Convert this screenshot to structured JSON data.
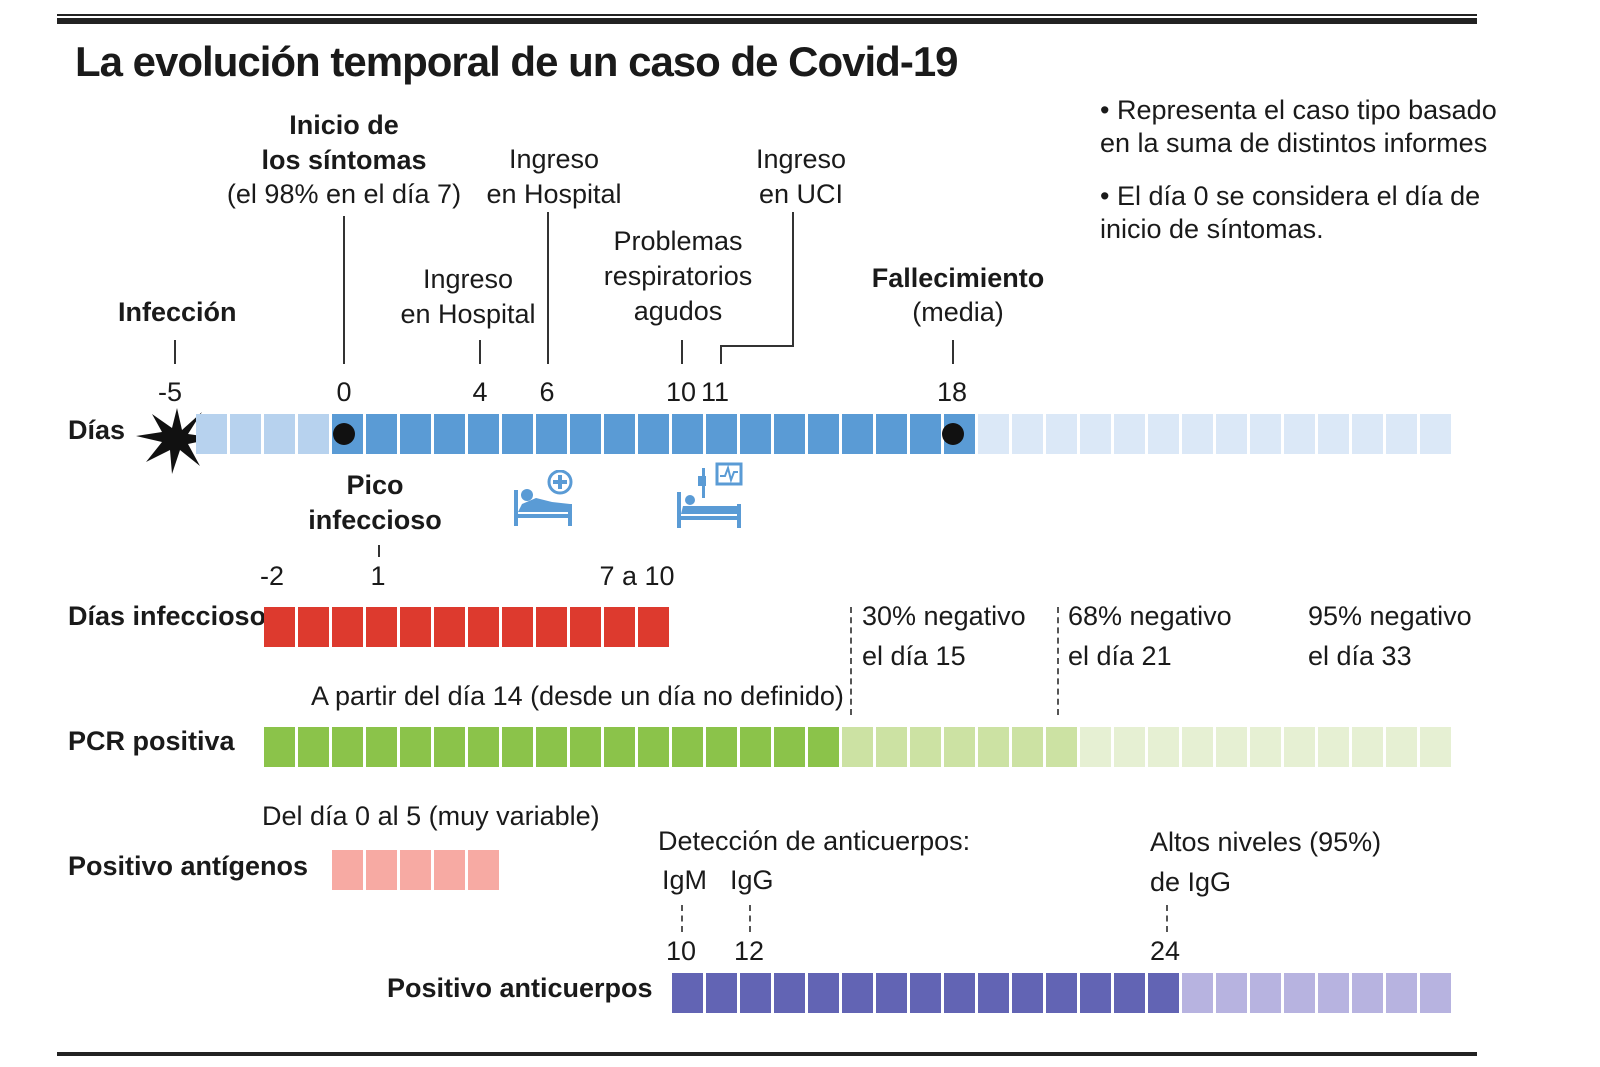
{
  "title": "La evolución temporal de un caso de Covid-19",
  "notes": [
    "• Representa el caso tipo basado\nen la suma de distintos informes",
    "• El día 0 se considera el día de\ninicio de síntomas."
  ],
  "events": {
    "infeccion": "Infección",
    "inicio_sintomas": "Inicio de\nlos síntomas",
    "inicio_sintomas_note": "(el 98% en el día 7)",
    "ingreso_hospital_4": "Ingreso\nen Hospital",
    "ingreso_hospital_6": "Ingreso\nen Hospital",
    "problemas": "Problemas\nrespiratorios\nagudos",
    "ingreso_uci": "Ingreso\nen UCI",
    "fallecimiento": "Fallecimiento",
    "fallecimiento_note": "(media)"
  },
  "dias": {
    "label": "Días",
    "ticks": [
      "-5",
      "0",
      "4",
      "6",
      "10",
      "11",
      "18"
    ]
  },
  "infeccioso": {
    "label": "Días infeccioso",
    "pico": "Pico\ninfeccioso",
    "ticks": [
      "-2",
      "1",
      "7 a 10"
    ]
  },
  "pcr": {
    "label": "PCR positiva",
    "desde": "A partir del día 14 (desde un día no definido)",
    "n30": "30% negativo\nel día 15",
    "n68": "68% negativo\nel día 21",
    "n95": "95% negativo\nel día 33"
  },
  "antigenos": {
    "label": "Positivo antígenos",
    "rango": "Del día 0 al 5 (muy variable)"
  },
  "anticuerpos": {
    "label": "Positivo anticuerpos",
    "deteccion": "Detección de anticuerpos:",
    "igm": "IgM",
    "igg": "IgG",
    "altos": "Altos niveles (95%)\nde IgG",
    "ticks": [
      "10",
      "12",
      "24"
    ]
  },
  "colors": {
    "blue_dark": "#5a9bd5",
    "blue_mid": "#b7d2ee",
    "blue_light": "#dbe8f7",
    "red": "#dd3a2e",
    "green_dark": "#8bc34a",
    "green_mid": "#cce2a3",
    "green_light": "#e6f0d3",
    "pink": "#f7aaa3",
    "purple_dark": "#6264b4",
    "purple_light": "#b7b3e0"
  },
  "icons": {
    "hospital": "hospital-bed-icon",
    "uci": "icu-bed-icon",
    "infection": "virus-burst-icon"
  }
}
